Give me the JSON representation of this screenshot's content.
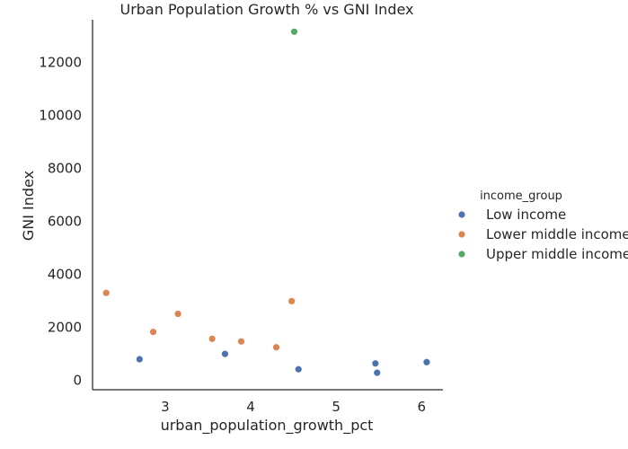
{
  "chart_data": {
    "type": "scatter",
    "title": "Urban Population Growth % vs GNI Index",
    "xlabel": "urban_population_growth_pct",
    "ylabel": "GNI Index",
    "xlim": [
      2.15,
      6.25
    ],
    "ylim": [
      -350,
      13600
    ],
    "x_ticks": [
      3,
      4,
      5,
      6
    ],
    "y_ticks": [
      0,
      2000,
      4000,
      6000,
      8000,
      10000,
      12000
    ],
    "grid": false,
    "legend_title": "income_group",
    "legend_position": "right",
    "series": [
      {
        "name": "Low income",
        "color": "#4c72b0",
        "points": [
          {
            "x": 2.7,
            "y": 800
          },
          {
            "x": 3.7,
            "y": 1000
          },
          {
            "x": 4.56,
            "y": 420
          },
          {
            "x": 5.46,
            "y": 640
          },
          {
            "x": 5.48,
            "y": 290
          },
          {
            "x": 6.06,
            "y": 690
          }
        ]
      },
      {
        "name": "Lower middle income",
        "color": "#dd8452",
        "points": [
          {
            "x": 2.31,
            "y": 3300
          },
          {
            "x": 2.86,
            "y": 1830
          },
          {
            "x": 3.15,
            "y": 2510
          },
          {
            "x": 3.55,
            "y": 1570
          },
          {
            "x": 3.89,
            "y": 1470
          },
          {
            "x": 4.3,
            "y": 1250
          },
          {
            "x": 4.48,
            "y": 2990
          }
        ]
      },
      {
        "name": "Upper middle income",
        "color": "#55a868",
        "points": [
          {
            "x": 4.51,
            "y": 13150
          }
        ]
      }
    ]
  }
}
